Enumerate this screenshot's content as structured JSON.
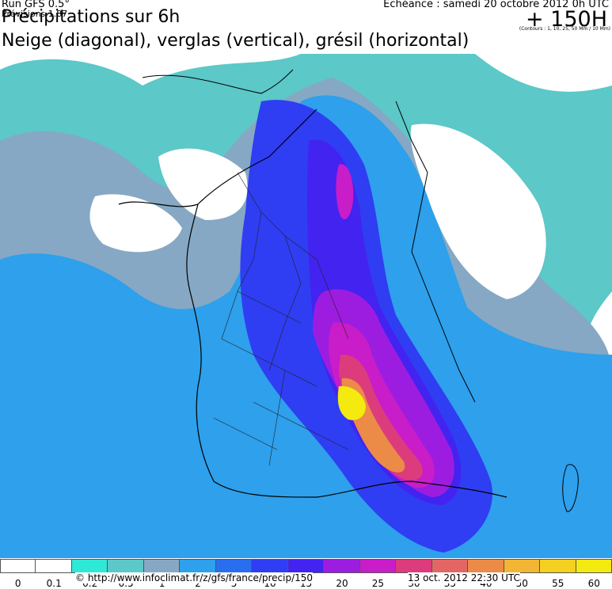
{
  "header": {
    "run": "Run GFS 0.5°",
    "overlap_text": "Prévisions 1.87",
    "title": "Précipitations sur 6h",
    "types": "Neige (diagonal), verglas (vertical), grésil (horizontal)",
    "echeance": "Echéance : samedi 20 octobre 2012 0h UTC",
    "contours": "(Contours : 1, 10, 25, 50 Mm / 10 Mm)",
    "lead": "+ 150H"
  },
  "legend": {
    "labels": [
      "0",
      "0.1",
      "0.2",
      "0.5",
      "1",
      "2",
      "5",
      "10",
      "15",
      "20",
      "25",
      "30",
      "35",
      "40",
      "50",
      "55",
      "60"
    ],
    "colors": [
      "#ffffff",
      "#ffffff",
      "#2ee8d8",
      "#5cc8c8",
      "#86a8c4",
      "#2ea0ec",
      "#2a6ef0",
      "#2f3ef2",
      "#4323f0",
      "#9c1de0",
      "#c81dc8",
      "#dc3c7c",
      "#e46664",
      "#ec8a48",
      "#f2b534",
      "#f4d020",
      "#f4ea10"
    ]
  },
  "footer": {
    "credit": "© http://www.infoclimat.fr/z/gfs/france/precip/150",
    "date": "13 oct. 2012 22:30 UTC"
  }
}
